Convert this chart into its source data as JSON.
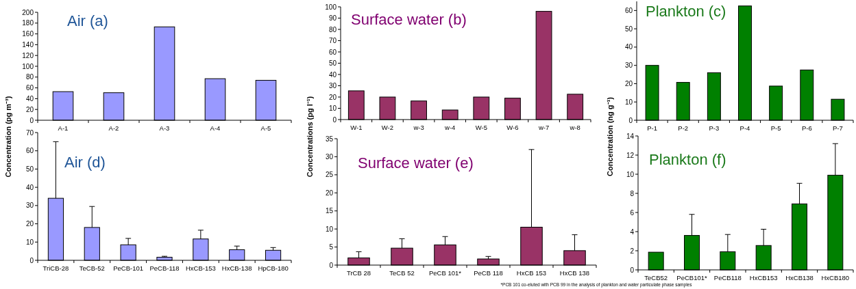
{
  "chart_data": [
    {
      "type": "bar",
      "title": "Air (a)",
      "ylabel": "Concentration (pg m⁻³)",
      "categories": [
        "A-1",
        "A-2",
        "A-3",
        "A-4",
        "A-5"
      ],
      "values": [
        53,
        51,
        173,
        77,
        74
      ],
      "color": "#9999ff",
      "ylim": [
        0,
        200
      ],
      "yticks": [
        0,
        20,
        40,
        60,
        80,
        100,
        120,
        140,
        160,
        180,
        200
      ],
      "grid": false
    },
    {
      "type": "bar",
      "title": "Surface water (b)",
      "ylabel": "Concentrations (pg l⁻¹)",
      "categories": [
        "W-1",
        "W-2",
        "w-3",
        "w-4",
        "W-5",
        "W-6",
        "w-7",
        "w-8"
      ],
      "values": [
        25.5,
        20,
        16.5,
        8.5,
        20,
        19,
        96,
        22.5
      ],
      "color": "#993366",
      "ylim": [
        0,
        100
      ],
      "yticks": [
        0,
        10,
        20,
        30,
        40,
        50,
        60,
        70,
        80,
        90,
        100
      ],
      "grid": false
    },
    {
      "type": "bar",
      "title": "Plankton (c)",
      "ylabel": "Concentration (ng g⁻¹)",
      "categories": [
        "P-1",
        "P-2",
        "P-3",
        "P-4",
        "P-5",
        "P-6",
        "P-7"
      ],
      "values": [
        30,
        20.7,
        26,
        62.5,
        18.7,
        27.5,
        11.5
      ],
      "color": "#008000",
      "ylim": [
        0,
        65
      ],
      "yticks": [
        0,
        10,
        20,
        30,
        40,
        50,
        60
      ],
      "grid": false
    },
    {
      "type": "bar",
      "title": "Air (d)",
      "categories": [
        "TriCB-28",
        "TeCB-52",
        "PeCB-101",
        "PeCB-118",
        "HxCB-153",
        "HxCB-138",
        "HpCB-180"
      ],
      "values": [
        34,
        18,
        8.5,
        1.7,
        11.7,
        5.8,
        5.5
      ],
      "errors": [
        [
          34,
          65
        ],
        [
          18,
          29.5
        ],
        [
          8.5,
          12
        ],
        [
          1.7,
          2.2
        ],
        [
          11.7,
          16.5
        ],
        [
          5.8,
          7.8
        ],
        [
          5.5,
          7
        ]
      ],
      "color": "#9999ff",
      "ylim": [
        0,
        70
      ],
      "yticks": [
        0,
        10,
        20,
        30,
        40,
        50,
        60,
        70
      ],
      "grid": false
    },
    {
      "type": "bar",
      "title": "Surface water (e)",
      "categories": [
        "TrCB 28",
        "TeCB 52",
        "PeCB 101*",
        "PeCB 118",
        "HxCB 153",
        "HxCB 138"
      ],
      "values": [
        2,
        4.7,
        5.6,
        1.7,
        10.5,
        4
      ],
      "errors": [
        [
          2,
          3.7
        ],
        [
          4.7,
          7.3
        ],
        [
          5.6,
          7.9
        ],
        [
          1.7,
          2.4
        ],
        [
          10.5,
          32
        ],
        [
          4,
          8.4
        ]
      ],
      "color": "#993366",
      "ylim": [
        0,
        35
      ],
      "yticks": [
        0,
        5,
        10,
        15,
        20,
        25,
        30,
        35
      ],
      "grid": false,
      "annotations": [
        "*PCB 101 co-eluted with PCB 99 in the analysis of plankton and water particulate phase samples"
      ]
    },
    {
      "type": "bar",
      "title": "Plankton (f)",
      "categories": [
        "TeCB52",
        "PeCB101*",
        "PeCB118",
        "HxCB153",
        "HxCB138",
        "HxCB180"
      ],
      "values": [
        1.85,
        3.6,
        1.9,
        2.55,
        6.9,
        9.9
      ],
      "errors": [
        null,
        [
          3.6,
          5.8
        ],
        [
          1.9,
          3.7
        ],
        [
          2.55,
          4.25
        ],
        [
          6.9,
          9.05
        ],
        [
          9.9,
          13.2
        ]
      ],
      "color": "#008000",
      "ylim": [
        0,
        14
      ],
      "yticks": [
        0,
        2,
        4,
        6,
        8,
        10,
        12,
        14
      ],
      "grid": false
    }
  ]
}
